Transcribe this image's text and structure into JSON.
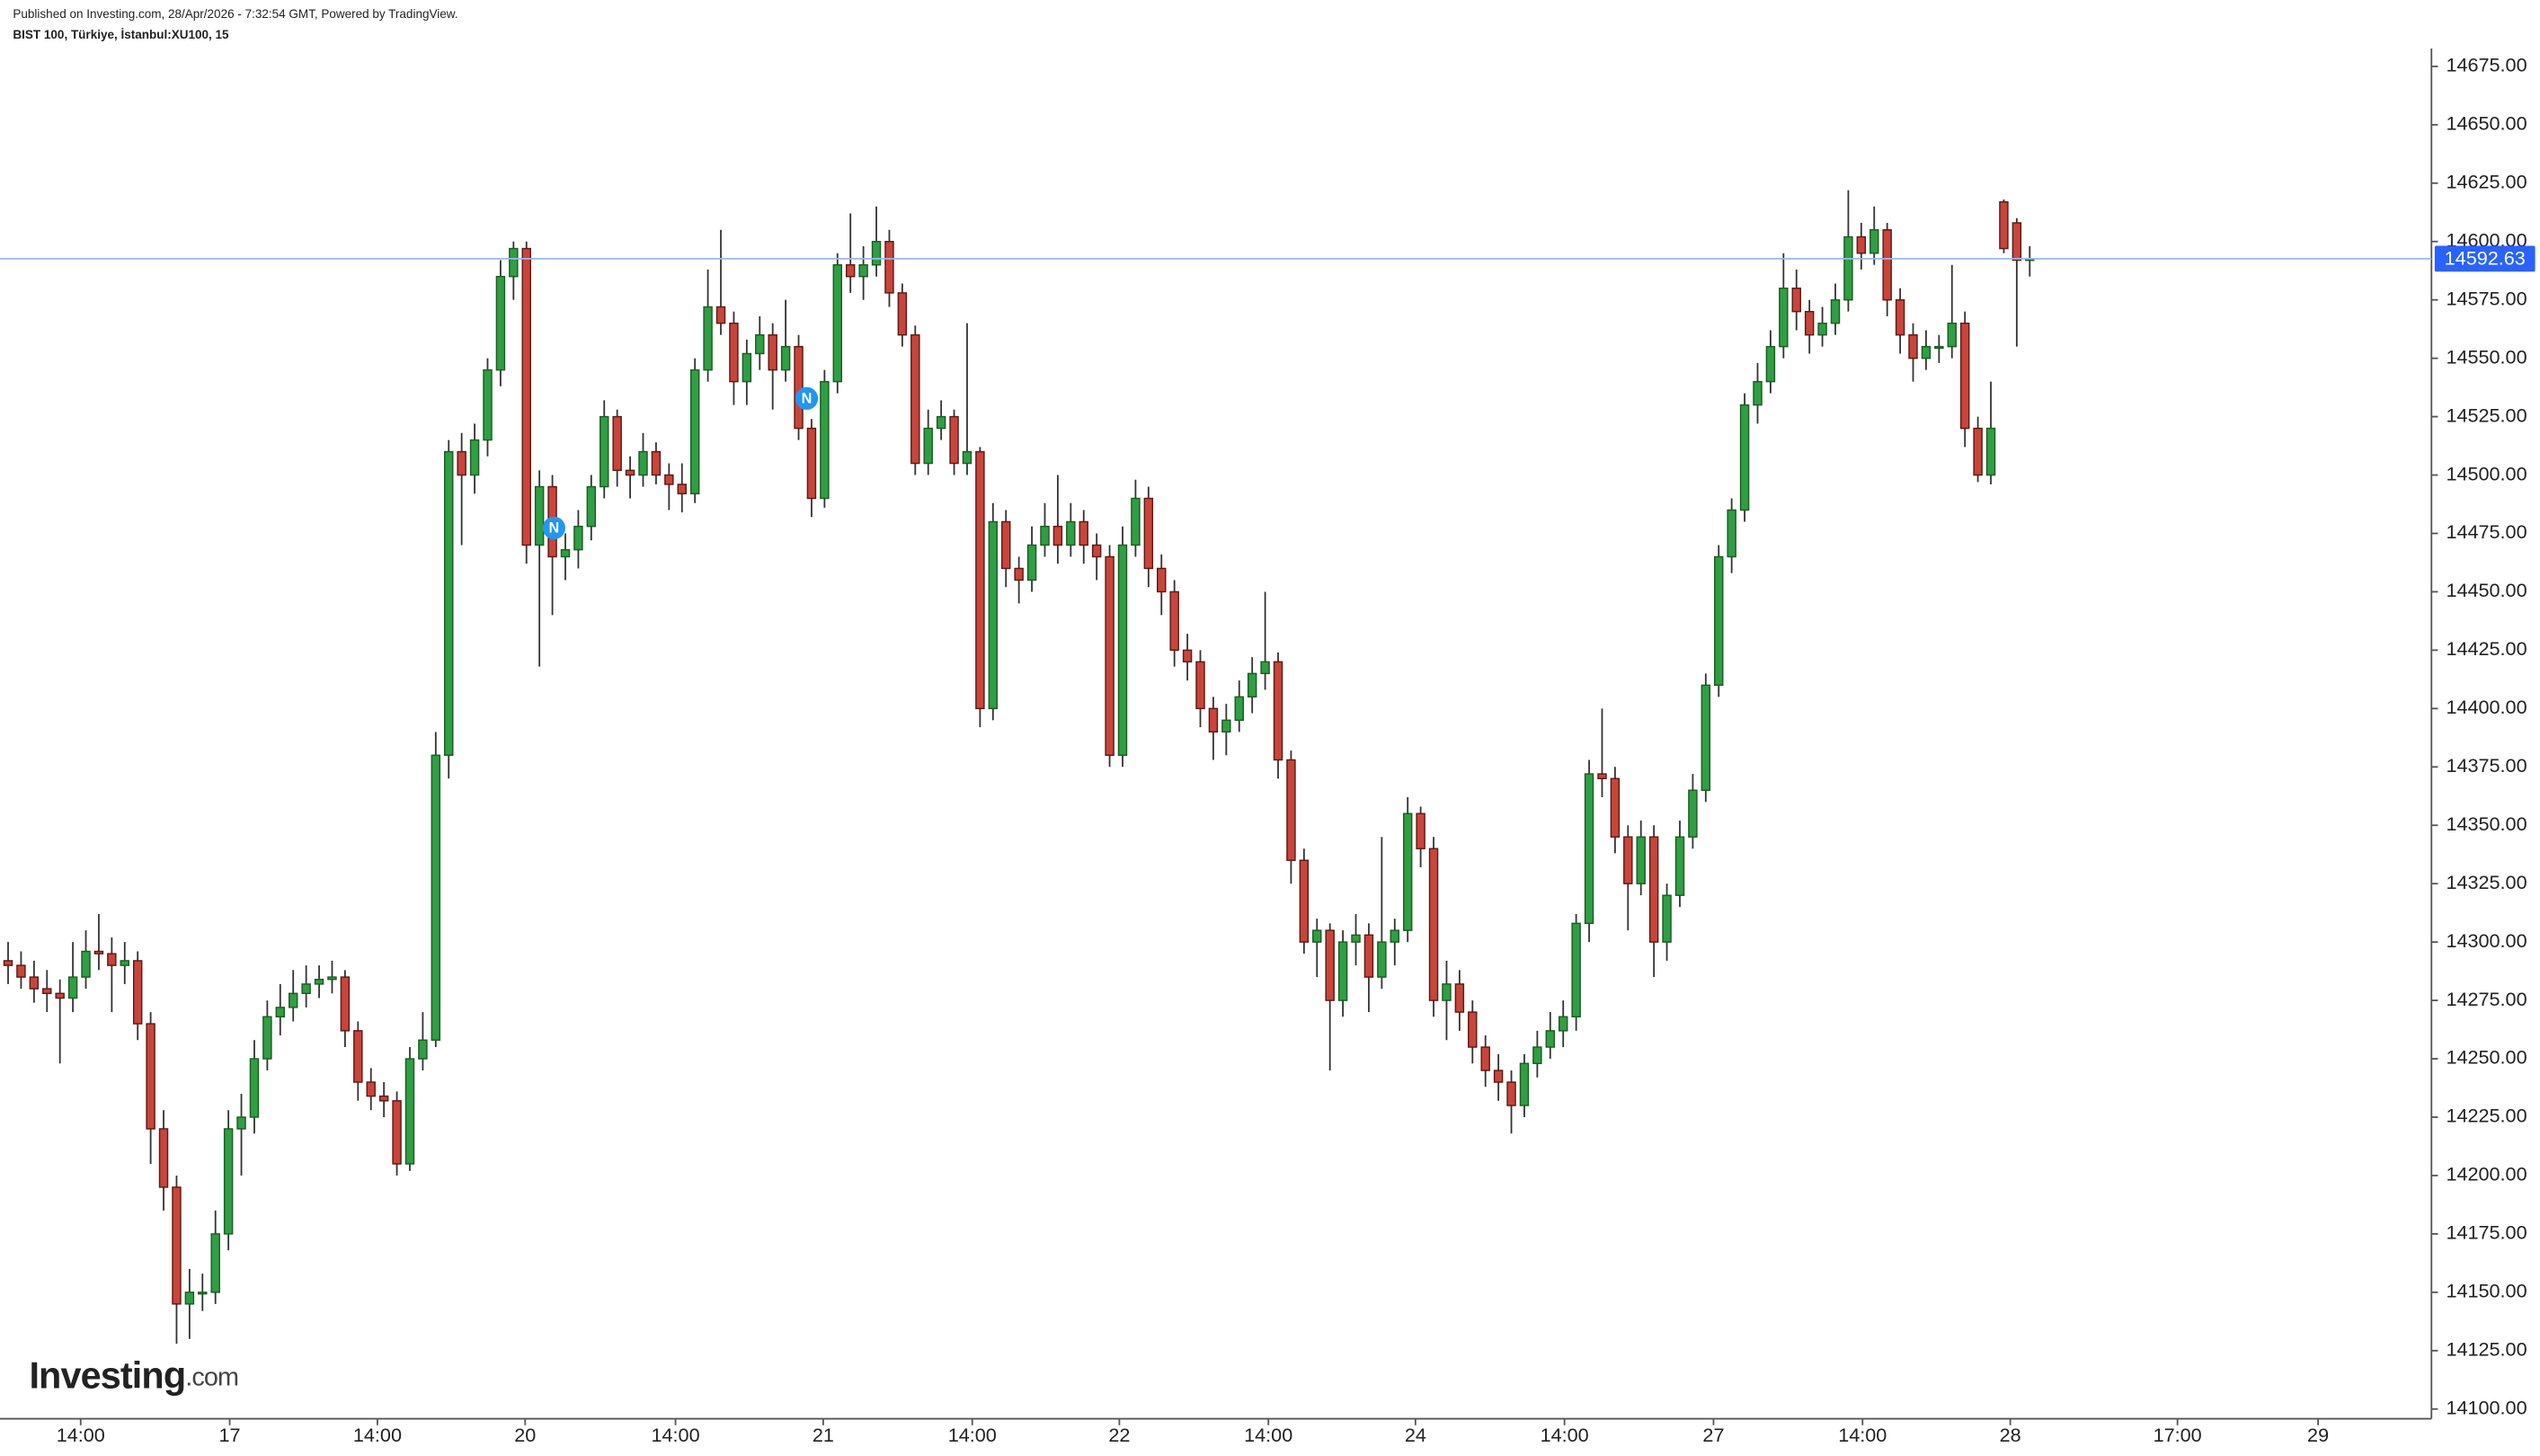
{
  "chart_data": {
    "type": "candlestick",
    "header": "Published on Investing.com, 28/Apr/2026 - 7:32:54 GMT, Powered by TradingView.",
    "title": "BIST 100, Türkiye, İstanbul:XU100, 15",
    "logo": {
      "name": "Investing",
      "suffix": ".com"
    },
    "up_color": "#2f9e44",
    "down_color": "#c8453b",
    "last_price": 14592.63,
    "ylim": [
      14100,
      14675
    ],
    "yticks": [
      {
        "value": 14100,
        "label": "14100.00"
      },
      {
        "value": 14125,
        "label": "14125.00"
      },
      {
        "value": 14150,
        "label": "14150.00"
      },
      {
        "value": 14175,
        "label": "14175.00"
      },
      {
        "value": 14200,
        "label": "14200.00"
      },
      {
        "value": 14225,
        "label": "14225.00"
      },
      {
        "value": 14250,
        "label": "14250.00"
      },
      {
        "value": 14275,
        "label": "14275.00"
      },
      {
        "value": 14300,
        "label": "14300.00"
      },
      {
        "value": 14325,
        "label": "14325.00"
      },
      {
        "value": 14350,
        "label": "14350.00"
      },
      {
        "value": 14375,
        "label": "14375.00"
      },
      {
        "value": 14400,
        "label": "14400.00"
      },
      {
        "value": 14425,
        "label": "14425.00"
      },
      {
        "value": 14450,
        "label": "14450.00"
      },
      {
        "value": 14475,
        "label": "14475.00"
      },
      {
        "value": 14500,
        "label": "14500.00"
      },
      {
        "value": 14525,
        "label": "14525.00"
      },
      {
        "value": 14550,
        "label": "14550.00"
      },
      {
        "value": 14575,
        "label": "14575.00"
      },
      {
        "value": 14600,
        "label": "14600.00"
      },
      {
        "value": 14625,
        "label": "14625.00"
      },
      {
        "value": 14650,
        "label": "14650.00"
      },
      {
        "value": 14675,
        "label": "14675.00"
      }
    ],
    "xlim": [
      -0.625,
      186.875
    ],
    "xticks": [
      {
        "value": 5.6,
        "label": "14:00"
      },
      {
        "value": 17.1,
        "label": "17"
      },
      {
        "value": 28.5,
        "label": "14:00"
      },
      {
        "value": 39.9,
        "label": "20"
      },
      {
        "value": 51.5,
        "label": "14:00"
      },
      {
        "value": 62.9,
        "label": "21"
      },
      {
        "value": 74.4,
        "label": "14:00"
      },
      {
        "value": 85.75,
        "label": "22"
      },
      {
        "value": 97.25,
        "label": "14:00"
      },
      {
        "value": 108.6,
        "label": "24"
      },
      {
        "value": 120.1,
        "label": "14:00"
      },
      {
        "value": 131.6,
        "label": "27"
      },
      {
        "value": 143.1,
        "label": "14:00"
      },
      {
        "value": 154.5,
        "label": "28"
      },
      {
        "value": 167.4,
        "label": "17:00"
      },
      {
        "value": 178.25,
        "label": "29"
      }
    ],
    "candles": [
      [
        14292,
        14300,
        14282,
        14290
      ],
      [
        14290,
        14296,
        14280,
        14285
      ],
      [
        14285,
        14292,
        14274,
        14280
      ],
      [
        14280,
        14288,
        14270,
        14278
      ],
      [
        14278,
        14284,
        14248,
        14276
      ],
      [
        14276,
        14300,
        14270,
        14285
      ],
      [
        14285,
        14305,
        14280,
        14296
      ],
      [
        14296,
        14312,
        14288,
        14295
      ],
      [
        14295,
        14302,
        14270,
        14290
      ],
      [
        14290,
        14300,
        14282,
        14292
      ],
      [
        14292,
        14296,
        14258,
        14265
      ],
      [
        14265,
        14270,
        14205,
        14220
      ],
      [
        14220,
        14228,
        14185,
        14195
      ],
      [
        14195,
        14200,
        14128,
        14145
      ],
      [
        14145,
        14160,
        14130,
        14150
      ],
      [
        14150,
        14158,
        14142,
        14150
      ],
      [
        14150,
        14185,
        14145,
        14175
      ],
      [
        14175,
        14228,
        14168,
        14220
      ],
      [
        14220,
        14235,
        14200,
        14225
      ],
      [
        14225,
        14258,
        14218,
        14250
      ],
      [
        14250,
        14275,
        14245,
        14268
      ],
      [
        14268,
        14282,
        14260,
        14272
      ],
      [
        14272,
        14288,
        14266,
        14278
      ],
      [
        14278,
        14290,
        14272,
        14282
      ],
      [
        14282,
        14290,
        14276,
        14284
      ],
      [
        14284,
        14292,
        14278,
        14285
      ],
      [
        14285,
        14288,
        14255,
        14262
      ],
      [
        14262,
        14266,
        14232,
        14240
      ],
      [
        14240,
        14246,
        14228,
        14234
      ],
      [
        14234,
        14240,
        14225,
        14232
      ],
      [
        14232,
        14236,
        14200,
        14205
      ],
      [
        14205,
        14255,
        14202,
        14250
      ],
      [
        14250,
        14270,
        14245,
        14258
      ],
      [
        14258,
        14390,
        14255,
        14380
      ],
      [
        14380,
        14515,
        14370,
        14510
      ],
      [
        14510,
        14518,
        14470,
        14500
      ],
      [
        14500,
        14522,
        14492,
        14515
      ],
      [
        14515,
        14550,
        14508,
        14545
      ],
      [
        14545,
        14592,
        14538,
        14585
      ],
      [
        14585,
        14600,
        14575,
        14597
      ],
      [
        14597,
        14600,
        14462,
        14470
      ],
      [
        14470,
        14502,
        14418,
        14495
      ],
      [
        14495,
        14500,
        14440,
        14465
      ],
      [
        14465,
        14475,
        14455,
        14468
      ],
      [
        14468,
        14485,
        14460,
        14478
      ],
      [
        14478,
        14500,
        14472,
        14495
      ],
      [
        14495,
        14532,
        14490,
        14525
      ],
      [
        14525,
        14528,
        14495,
        14502
      ],
      [
        14502,
        14508,
        14490,
        14500
      ],
      [
        14500,
        14518,
        14495,
        14510
      ],
      [
        14510,
        14514,
        14496,
        14500
      ],
      [
        14500,
        14505,
        14485,
        14496
      ],
      [
        14496,
        14505,
        14484,
        14492
      ],
      [
        14492,
        14550,
        14488,
        14545
      ],
      [
        14545,
        14588,
        14540,
        14572
      ],
      [
        14572,
        14605,
        14560,
        14565
      ],
      [
        14565,
        14570,
        14530,
        14540
      ],
      [
        14540,
        14558,
        14530,
        14552
      ],
      [
        14552,
        14568,
        14545,
        14560
      ],
      [
        14560,
        14565,
        14528,
        14545
      ],
      [
        14545,
        14575,
        14540,
        14555
      ],
      [
        14555,
        14560,
        14515,
        14520
      ],
      [
        14520,
        14524,
        14482,
        14490
      ],
      [
        14490,
        14545,
        14486,
        14540
      ],
      [
        14540,
        14595,
        14535,
        14590
      ],
      [
        14590,
        14612,
        14578,
        14585
      ],
      [
        14585,
        14598,
        14575,
        14590
      ],
      [
        14590,
        14615,
        14585,
        14600
      ],
      [
        14600,
        14605,
        14572,
        14578
      ],
      [
        14578,
        14582,
        14555,
        14560
      ],
      [
        14560,
        14564,
        14500,
        14505
      ],
      [
        14505,
        14528,
        14500,
        14520
      ],
      [
        14520,
        14532,
        14515,
        14525
      ],
      [
        14525,
        14528,
        14500,
        14505
      ],
      [
        14505,
        14565,
        14500,
        14510
      ],
      [
        14510,
        14512,
        14392,
        14400
      ],
      [
        14400,
        14488,
        14395,
        14480
      ],
      [
        14480,
        14485,
        14452,
        14460
      ],
      [
        14460,
        14465,
        14445,
        14455
      ],
      [
        14455,
        14478,
        14450,
        14470
      ],
      [
        14470,
        14488,
        14465,
        14478
      ],
      [
        14478,
        14500,
        14462,
        14470
      ],
      [
        14470,
        14488,
        14465,
        14480
      ],
      [
        14480,
        14485,
        14462,
        14470
      ],
      [
        14470,
        14475,
        14455,
        14465
      ],
      [
        14465,
        14470,
        14375,
        14380
      ],
      [
        14380,
        14478,
        14375,
        14470
      ],
      [
        14470,
        14498,
        14465,
        14490
      ],
      [
        14490,
        14495,
        14452,
        14460
      ],
      [
        14460,
        14466,
        14440,
        14450
      ],
      [
        14450,
        14455,
        14418,
        14425
      ],
      [
        14425,
        14432,
        14412,
        14420
      ],
      [
        14420,
        14425,
        14392,
        14400
      ],
      [
        14400,
        14405,
        14378,
        14390
      ],
      [
        14390,
        14402,
        14380,
        14395
      ],
      [
        14395,
        14412,
        14390,
        14405
      ],
      [
        14405,
        14422,
        14398,
        14415
      ],
      [
        14415,
        14450,
        14408,
        14420
      ],
      [
        14420,
        14424,
        14370,
        14378
      ],
      [
        14378,
        14382,
        14325,
        14335
      ],
      [
        14335,
        14340,
        14295,
        14300
      ],
      [
        14300,
        14310,
        14285,
        14305
      ],
      [
        14305,
        14308,
        14245,
        14275
      ],
      [
        14275,
        14305,
        14268,
        14300
      ],
      [
        14300,
        14312,
        14290,
        14303
      ],
      [
        14303,
        14308,
        14270,
        14285
      ],
      [
        14285,
        14345,
        14280,
        14300
      ],
      [
        14300,
        14310,
        14290,
        14305
      ],
      [
        14305,
        14362,
        14300,
        14355
      ],
      [
        14355,
        14358,
        14332,
        14340
      ],
      [
        14340,
        14345,
        14268,
        14275
      ],
      [
        14275,
        14292,
        14258,
        14282
      ],
      [
        14282,
        14288,
        14262,
        14270
      ],
      [
        14270,
        14275,
        14248,
        14255
      ],
      [
        14255,
        14260,
        14238,
        14245
      ],
      [
        14245,
        14252,
        14232,
        14240
      ],
      [
        14240,
        14245,
        14218,
        14230
      ],
      [
        14230,
        14252,
        14225,
        14248
      ],
      [
        14248,
        14262,
        14242,
        14255
      ],
      [
        14255,
        14270,
        14250,
        14262
      ],
      [
        14262,
        14275,
        14255,
        14268
      ],
      [
        14268,
        14312,
        14262,
        14308
      ],
      [
        14308,
        14378,
        14300,
        14372
      ],
      [
        14372,
        14400,
        14362,
        14370
      ],
      [
        14370,
        14375,
        14338,
        14345
      ],
      [
        14345,
        14350,
        14305,
        14325
      ],
      [
        14325,
        14352,
        14320,
        14345
      ],
      [
        14345,
        14350,
        14285,
        14300
      ],
      [
        14300,
        14325,
        14292,
        14320
      ],
      [
        14320,
        14352,
        14315,
        14345
      ],
      [
        14345,
        14372,
        14340,
        14365
      ],
      [
        14365,
        14415,
        14360,
        14410
      ],
      [
        14410,
        14470,
        14405,
        14465
      ],
      [
        14465,
        14490,
        14458,
        14485
      ],
      [
        14485,
        14535,
        14480,
        14530
      ],
      [
        14530,
        14548,
        14522,
        14540
      ],
      [
        14540,
        14562,
        14535,
        14555
      ],
      [
        14555,
        14595,
        14550,
        14580
      ],
      [
        14580,
        14588,
        14562,
        14570
      ],
      [
        14570,
        14575,
        14552,
        14560
      ],
      [
        14560,
        14572,
        14555,
        14565
      ],
      [
        14565,
        14582,
        14560,
        14575
      ],
      [
        14575,
        14622,
        14570,
        14602
      ],
      [
        14602,
        14608,
        14588,
        14595
      ],
      [
        14595,
        14615,
        14590,
        14605
      ],
      [
        14605,
        14608,
        14568,
        14575
      ],
      [
        14575,
        14580,
        14552,
        14560
      ],
      [
        14560,
        14565,
        14540,
        14550
      ],
      [
        14550,
        14562,
        14545,
        14555
      ],
      [
        14555,
        14560,
        14548,
        14555
      ],
      [
        14555,
        14590,
        14550,
        14565
      ],
      [
        14565,
        14570,
        14512,
        14520
      ],
      [
        14520,
        14525,
        14497,
        14500
      ],
      [
        14500,
        14540,
        14496,
        14520
      ],
      [
        14617,
        14618,
        14595,
        14597
      ],
      [
        14608,
        14610,
        14555,
        14592
      ],
      [
        14592,
        14598,
        14585,
        14592.63
      ]
    ]
  }
}
